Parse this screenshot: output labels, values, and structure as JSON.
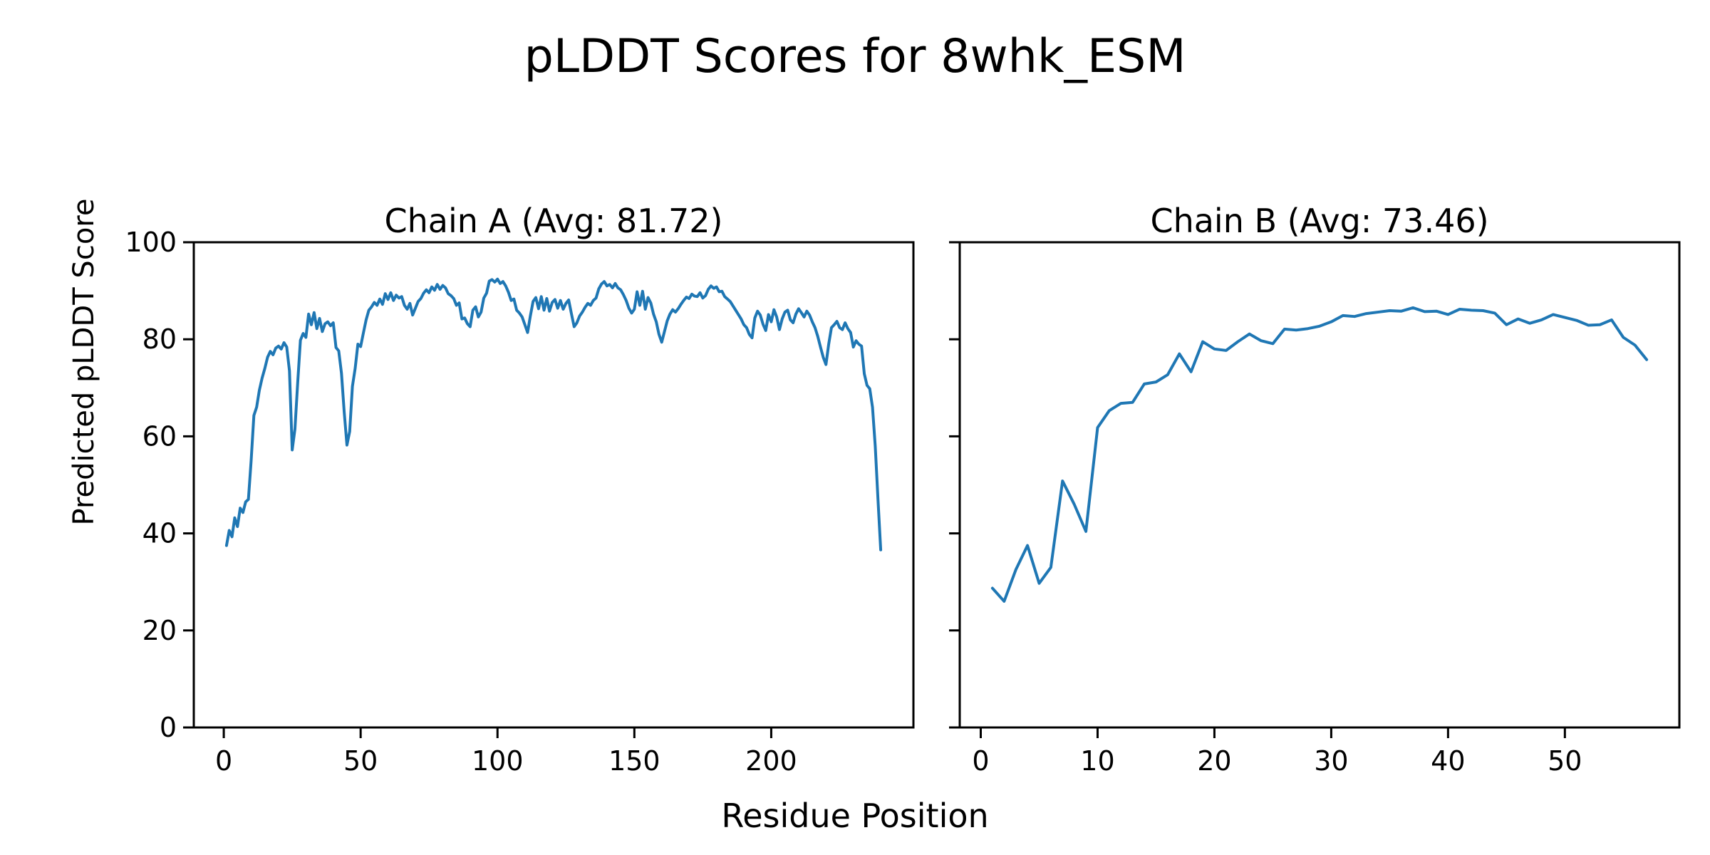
{
  "figure": {
    "title": "pLDDT Scores for 8whk_ESM",
    "xlabel": "Residue Position",
    "ylabel": "Predicted pLDDT Score",
    "line_color": "#1f77b4",
    "background_color": "#ffffff",
    "text_color": "#000000"
  },
  "chart_data": [
    {
      "type": "line",
      "title": "Chain A (Avg: 81.72)",
      "average": 81.72,
      "xlabel": "Residue Position",
      "ylabel": "Predicted pLDDT Score",
      "x_start": 1,
      "xticks": [
        0,
        50,
        100,
        150,
        200
      ],
      "yticks": [
        0,
        20,
        40,
        60,
        80,
        100
      ],
      "ylim": [
        0,
        100
      ],
      "x_margin_frac": 0.05,
      "grid": false,
      "legend": null,
      "show_y_tick_labels": true,
      "series": [
        {
          "name": "Chain A pLDDT",
          "values": [
            37.5,
            40.6,
            39.3,
            43.2,
            41.4,
            45.2,
            44.3,
            46.5,
            47.0,
            55.0,
            64.3,
            66.0,
            69.5,
            72.0,
            74.0,
            76.3,
            77.5,
            76.8,
            78.2,
            78.6,
            78.0,
            79.3,
            78.4,
            73.5,
            57.2,
            61.5,
            71.0,
            79.8,
            81.2,
            80.4,
            85.2,
            83.0,
            85.5,
            82.2,
            84.3,
            81.6,
            83.2,
            83.6,
            82.8,
            83.4,
            78.3,
            77.6,
            73.0,
            65.0,
            58.2,
            61.0,
            70.3,
            74.0,
            79.0,
            78.5,
            81.3,
            84.0,
            86.0,
            86.7,
            87.6,
            87.0,
            88.3,
            87.2,
            89.4,
            88.2,
            89.6,
            88.0,
            89.1,
            88.5,
            88.8,
            87.0,
            86.2,
            87.4,
            85.0,
            86.4,
            87.8,
            88.4,
            89.5,
            90.2,
            89.6,
            90.8,
            90.1,
            91.3,
            90.3,
            91.1,
            90.6,
            89.4,
            89.0,
            88.4,
            87.0,
            87.5,
            84.2,
            84.4,
            83.2,
            82.6,
            86.0,
            86.7,
            84.6,
            85.6,
            88.5,
            89.5,
            92.0,
            92.3,
            91.8,
            92.4,
            91.5,
            91.9,
            91.0,
            89.7,
            88.0,
            88.3,
            86.0,
            85.4,
            84.6,
            83.0,
            81.4,
            84.8,
            87.8,
            88.6,
            86.3,
            88.8,
            86.0,
            88.4,
            85.8,
            87.6,
            88.2,
            86.4,
            88.0,
            86.2,
            87.4,
            88.1,
            85.3,
            82.6,
            83.4,
            84.8,
            85.6,
            86.6,
            87.4,
            87.0,
            88.0,
            88.5,
            90.4,
            91.4,
            91.9,
            91.0,
            91.3,
            90.6,
            91.5,
            90.6,
            90.2,
            89.2,
            88.0,
            86.4,
            85.4,
            86.2,
            89.8,
            87.0,
            89.9,
            86.2,
            88.6,
            87.5,
            85.2,
            83.6,
            81.0,
            79.4,
            81.6,
            83.8,
            85.2,
            86.1,
            85.6,
            86.3,
            87.2,
            88.0,
            88.7,
            88.4,
            89.3,
            88.9,
            88.8,
            89.6,
            88.5,
            89.0,
            90.3,
            91.0,
            90.5,
            90.8,
            89.8,
            89.9,
            88.8,
            88.3,
            87.8,
            86.9,
            86.0,
            85.1,
            84.2,
            83.0,
            82.4,
            81.0,
            80.3,
            84.4,
            85.8,
            85.0,
            83.1,
            81.8,
            85.1,
            83.6,
            86.1,
            84.6,
            82.0,
            84.2,
            85.6,
            86.0,
            84.0,
            83.4,
            85.2,
            86.3,
            85.5,
            84.6,
            85.8,
            85.0,
            83.6,
            82.4,
            80.6,
            78.4,
            76.3,
            74.8,
            79.0,
            82.4,
            83.0,
            83.7,
            82.4,
            82.0,
            83.4,
            82.2,
            81.4,
            78.4,
            79.7,
            79.0,
            78.6,
            72.9,
            70.5,
            69.8,
            66.0,
            58.0,
            47.0,
            36.6
          ]
        }
      ]
    },
    {
      "type": "line",
      "title": "Chain B (Avg: 73.46)",
      "average": 73.46,
      "xlabel": "Residue Position",
      "ylabel": "Predicted pLDDT Score",
      "x_start": 1,
      "xticks": [
        0,
        10,
        20,
        30,
        40,
        50
      ],
      "yticks": [
        0,
        20,
        40,
        60,
        80,
        100
      ],
      "ylim": [
        0,
        100
      ],
      "x_margin_frac": 0.05,
      "grid": false,
      "legend": null,
      "show_y_tick_labels": false,
      "series": [
        {
          "name": "Chain B pLDDT",
          "values": [
            28.7,
            26.0,
            32.5,
            37.5,
            29.7,
            33.0,
            50.8,
            46.0,
            40.4,
            61.8,
            65.3,
            66.8,
            67.0,
            70.8,
            71.2,
            72.7,
            77.0,
            73.3,
            79.5,
            78.0,
            77.7,
            79.5,
            81.1,
            79.7,
            79.1,
            82.1,
            81.9,
            82.2,
            82.7,
            83.6,
            84.9,
            84.7,
            85.3,
            85.6,
            85.9,
            85.8,
            86.5,
            85.7,
            85.8,
            85.1,
            86.2,
            86.0,
            85.9,
            85.4,
            83.0,
            84.2,
            83.3,
            84.0,
            85.1,
            84.5,
            83.9,
            82.9,
            83.0,
            84.0,
            80.4,
            78.8,
            75.8
          ]
        }
      ]
    }
  ]
}
